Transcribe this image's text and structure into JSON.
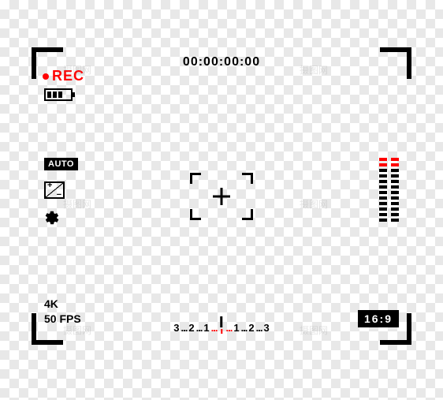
{
  "colors": {
    "corner": "#000000",
    "rec": "#ff0000",
    "text": "#000000",
    "level_normal": "#000000",
    "level_peak": "#ff0000"
  },
  "timecode": "00:00:00:00",
  "rec_label": "REC",
  "battery": {
    "bars_filled": 3,
    "bars_total": 4
  },
  "auto_label": "AUTO",
  "resolution_line1": "4K",
  "resolution_line2": "50 FPS",
  "aspect_ratio": "16:9",
  "focus_scale": {
    "left": [
      "3",
      "2",
      "1"
    ],
    "right": [
      "1",
      "2",
      "3"
    ],
    "dot_color_center": "#ff0000",
    "dot_color": "#000000"
  },
  "level_meter": {
    "segments": 12,
    "peak_segments": 2,
    "channels": 2
  },
  "watermark_text": "摄图网"
}
